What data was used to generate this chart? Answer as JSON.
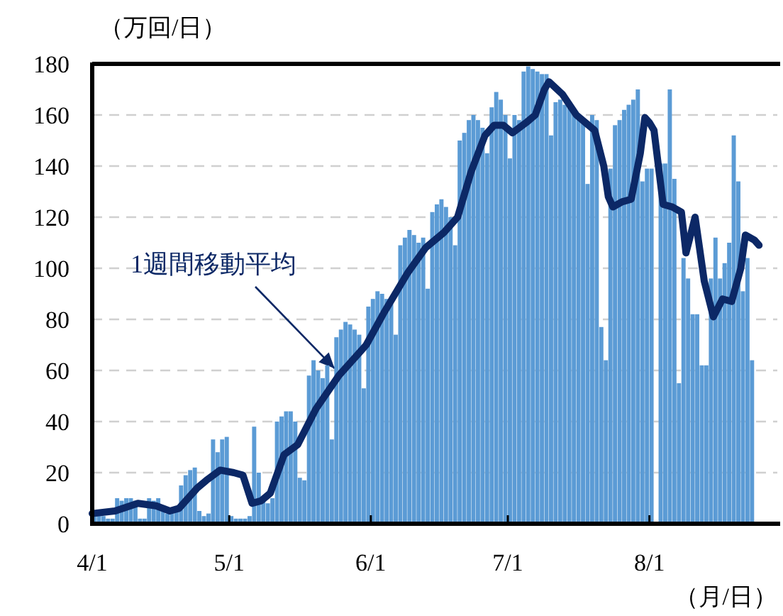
{
  "chart_data": {
    "type": "bar",
    "ylabel": "（万回/日）",
    "xlabel": "（月/日）",
    "xlim": [
      "--04-01",
      "--08-29"
    ],
    "ylim": [
      0,
      180
    ],
    "xticks": [
      {
        "value": "--04-01",
        "label": "4/1"
      },
      {
        "value": "--05-01",
        "label": "5/1"
      },
      {
        "value": "--06-01",
        "label": "6/1"
      },
      {
        "value": "--07-01",
        "label": "7/1"
      },
      {
        "value": "--08-01",
        "label": "8/1"
      }
    ],
    "yticks": [
      0,
      20,
      40,
      60,
      80,
      100,
      120,
      140,
      160,
      180
    ],
    "grid": "y",
    "x": [
      "--04-01",
      "--04-02",
      "--04-03",
      "--04-04",
      "--04-05",
      "--04-06",
      "--04-07",
      "--04-08",
      "--04-09",
      "--04-10",
      "--04-11",
      "--04-12",
      "--04-13",
      "--04-14",
      "--04-15",
      "--04-16",
      "--04-17",
      "--04-18",
      "--04-19",
      "--04-20",
      "--04-21",
      "--04-22",
      "--04-23",
      "--04-24",
      "--04-25",
      "--04-26",
      "--04-27",
      "--04-28",
      "--04-29",
      "--04-30",
      "--05-01",
      "--05-02",
      "--05-03",
      "--05-04",
      "--05-05",
      "--05-06",
      "--05-07",
      "--05-08",
      "--05-09",
      "--05-10",
      "--05-11",
      "--05-12",
      "--05-13",
      "--05-14",
      "--05-15",
      "--05-16",
      "--05-17",
      "--05-18",
      "--05-19",
      "--05-20",
      "--05-21",
      "--05-22",
      "--05-23",
      "--05-24",
      "--05-25",
      "--05-26",
      "--05-27",
      "--05-28",
      "--05-29",
      "--05-30",
      "--05-31",
      "--06-01",
      "--06-02",
      "--06-03",
      "--06-04",
      "--06-05",
      "--06-06",
      "--06-07",
      "--06-08",
      "--06-09",
      "--06-10",
      "--06-11",
      "--06-12",
      "--06-13",
      "--06-14",
      "--06-15",
      "--06-16",
      "--06-17",
      "--06-18",
      "--06-19",
      "--06-20",
      "--06-21",
      "--06-22",
      "--06-23",
      "--06-24",
      "--06-25",
      "--06-26",
      "--06-27",
      "--06-28",
      "--06-29",
      "--06-30",
      "--07-01",
      "--07-02",
      "--07-03",
      "--07-04",
      "--07-05",
      "--07-06",
      "--07-07",
      "--07-08",
      "--07-09",
      "--07-10",
      "--07-11",
      "--07-12",
      "--07-13",
      "--07-14",
      "--07-15",
      "--07-16",
      "--07-17",
      "--07-18",
      "--07-19",
      "--07-20",
      "--07-21",
      "--07-22",
      "--07-23",
      "--07-24",
      "--07-25",
      "--07-26",
      "--07-27",
      "--07-28",
      "--07-29",
      "--07-30",
      "--07-31",
      "--08-01",
      "--08-02",
      "--08-03",
      "--08-04",
      "--08-05",
      "--08-06",
      "--08-07",
      "--08-08",
      "--08-09",
      "--08-10",
      "--08-11",
      "--08-12",
      "--08-13",
      "--08-14",
      "--08-15",
      "--08-16",
      "--08-17",
      "--08-18",
      "--08-19",
      "--08-20",
      "--08-21",
      "--08-22",
      "--08-23"
    ],
    "series": [
      {
        "color": "#5b9bd5",
        "values": [
          3,
          4,
          3,
          2,
          2,
          10,
          9,
          10,
          10,
          9,
          2,
          2,
          10,
          9,
          10,
          5,
          4,
          5,
          6,
          15,
          19,
          21,
          22,
          5,
          3,
          4,
          33,
          28,
          33,
          34,
          3,
          2,
          2,
          2,
          3,
          38,
          20,
          9,
          8,
          10,
          40,
          42,
          44,
          44,
          40,
          18,
          17,
          58,
          64,
          60,
          57,
          62,
          33,
          73,
          76,
          79,
          78,
          76,
          74,
          53,
          85,
          88,
          91,
          90,
          88,
          86,
          74,
          109,
          112,
          115,
          113,
          110,
          112,
          92,
          122,
          125,
          127,
          124,
          120,
          109,
          150,
          153,
          158,
          160,
          158,
          155,
          145,
          163,
          169,
          166,
          160,
          143,
          160,
          158,
          177,
          179,
          178,
          177,
          176,
          176,
          152,
          165,
          166,
          164,
          163,
          161,
          160,
          158,
          133,
          160,
          158,
          77,
          64,
          139,
          156,
          158,
          162,
          164,
          166,
          170,
          134,
          139,
          139,
          null,
          141,
          141,
          170,
          135,
          55,
          104,
          96,
          82,
          82,
          62,
          62,
          96,
          112,
          96,
          102,
          110,
          152,
          134,
          91,
          104,
          64
        ]
      },
      {
        "type": "line",
        "name": "1週間移動平均",
        "color": "#0c2866",
        "x": [
          "--04-01",
          "--04-06",
          "--04-11",
          "--04-15",
          "--04-18",
          "--04-20",
          "--04-24",
          "--04-26",
          "--04-29",
          "--05-02",
          "--05-04",
          "--05-06",
          "--05-08",
          "--05-10",
          "--05-13",
          "--05-16",
          "--05-20",
          "--05-25",
          "--05-31",
          "--06-04",
          "--06-09",
          "--06-13",
          "--06-17",
          "--06-20",
          "--06-23",
          "--06-26",
          "--06-28",
          "--06-30",
          "--07-02",
          "--07-05",
          "--07-07",
          "--07-09",
          "--07-10",
          "--07-13",
          "--07-16",
          "--07-18",
          "--07-20",
          "--07-22",
          "--07-23",
          "--07-24",
          "--07-26",
          "--07-28",
          "--07-30",
          "--07-31",
          "--08-01",
          "--08-02",
          "--08-04",
          "--08-06",
          "--08-08",
          "--08-09",
          "--08-11",
          "--08-13",
          "--08-15",
          "--08-17",
          "--08-19",
          "--08-21",
          "--08-22",
          "--08-24",
          "--08-25"
        ],
        "values": [
          4,
          5,
          8,
          7,
          5,
          6,
          14,
          17,
          21,
          20,
          19,
          8,
          9,
          12,
          27,
          31,
          45,
          58,
          70,
          83,
          98,
          108,
          114,
          120,
          138,
          152,
          156,
          156,
          153,
          157,
          160,
          170,
          173,
          168,
          160,
          157,
          154,
          140,
          128,
          124,
          126,
          127,
          145,
          159,
          157,
          154,
          125,
          124,
          122,
          106,
          120,
          95,
          81,
          88,
          87,
          100,
          113,
          111,
          109
        ]
      }
    ]
  }
}
